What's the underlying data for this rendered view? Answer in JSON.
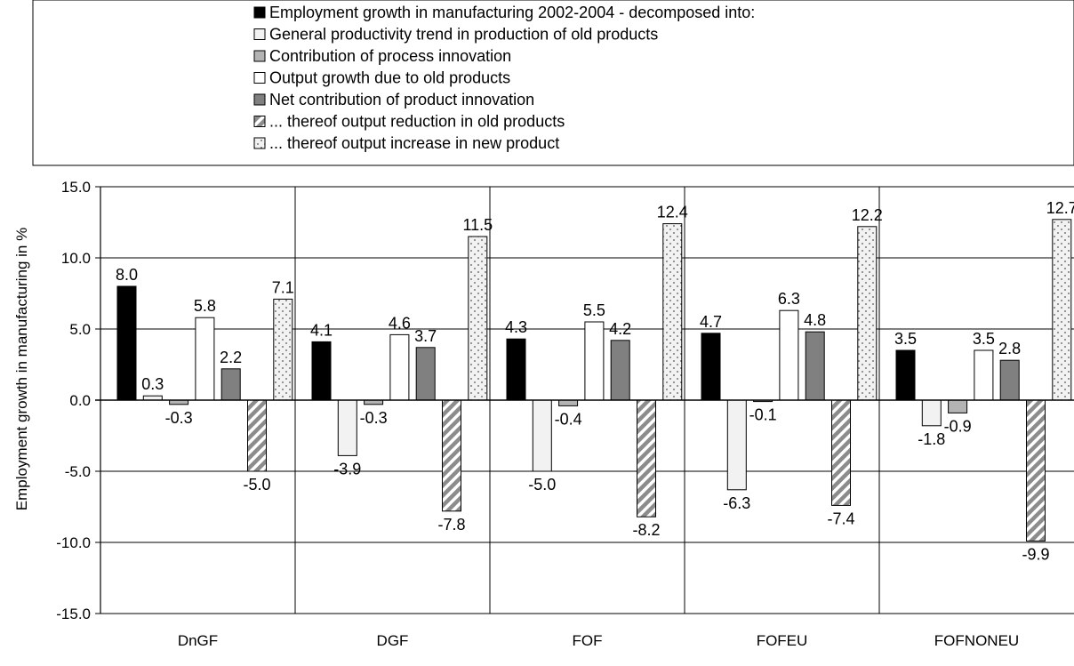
{
  "chart_data": {
    "type": "bar",
    "ylabel": "Employment growth in manufacturing in %",
    "ylim": [
      -15,
      15
    ],
    "yticks": [
      15,
      10,
      5,
      0,
      -5,
      -10,
      -15
    ],
    "ytick_labels": [
      "15.0",
      "10.0",
      "5.0",
      "0.0",
      "-5.0",
      "-10.0",
      "-15.0"
    ],
    "grid": "horizontal major gridlines; vertical separators between groups",
    "legend_position": "top",
    "categories": [
      "DnGF",
      "DGF",
      "FOF",
      "FOFEU",
      "FOFNONEU"
    ],
    "series": [
      {
        "name": "Employment growth in manufacturing 2002-2004 - decomposed into:",
        "fill": "#000000",
        "pattern": "solid",
        "values": [
          8.0,
          4.1,
          4.3,
          4.7,
          3.5
        ],
        "labels": [
          "8.0",
          "4.1",
          "4.3",
          "4.7",
          "3.5"
        ]
      },
      {
        "name": "General productivity trend in production of old products",
        "fill": "#f2f2f2",
        "pattern": "solid",
        "values": [
          0.3,
          -3.9,
          -5.0,
          -6.3,
          -1.8
        ],
        "labels": [
          "0.3",
          "-3.9",
          "-5.0",
          "-6.3",
          "-1.8"
        ]
      },
      {
        "name": "Contribution of process innovation",
        "fill": "#b3b3b3",
        "pattern": "solid",
        "values": [
          -0.3,
          -0.3,
          -0.4,
          -0.1,
          -0.9
        ],
        "labels": [
          "-0.3",
          "-0.3",
          "-0.4",
          "-0.1",
          "-0.9"
        ]
      },
      {
        "name": "Output growth due to old products",
        "fill": "#ffffff",
        "pattern": "solid",
        "values": [
          5.8,
          4.6,
          5.5,
          6.3,
          3.5
        ],
        "labels": [
          "5.8",
          "4.6",
          "5.5",
          "6.3",
          "3.5"
        ]
      },
      {
        "name": "Net contribution of product innovation",
        "fill": "#808080",
        "pattern": "solid",
        "values": [
          2.2,
          3.7,
          4.2,
          4.8,
          2.8
        ],
        "labels": [
          "2.2",
          "3.7",
          "4.2",
          "4.8",
          "2.8"
        ]
      },
      {
        "name": "... thereof output reduction in old products",
        "fill": "#8c8c8c",
        "pattern": "diagonal-stripes",
        "values": [
          -5.0,
          -7.8,
          -8.2,
          -7.4,
          -9.9
        ],
        "labels": [
          "-5.0",
          "-7.8",
          "-8.2",
          "-7.4",
          "-9.9"
        ]
      },
      {
        "name": "... thereof output increase in new product",
        "fill": "#f2f2f2",
        "pattern": "dots",
        "values": [
          7.1,
          11.5,
          12.4,
          12.2,
          12.7
        ],
        "labels": [
          "7.1",
          "11.5",
          "12.4",
          "12.2",
          "12.7"
        ]
      }
    ]
  }
}
